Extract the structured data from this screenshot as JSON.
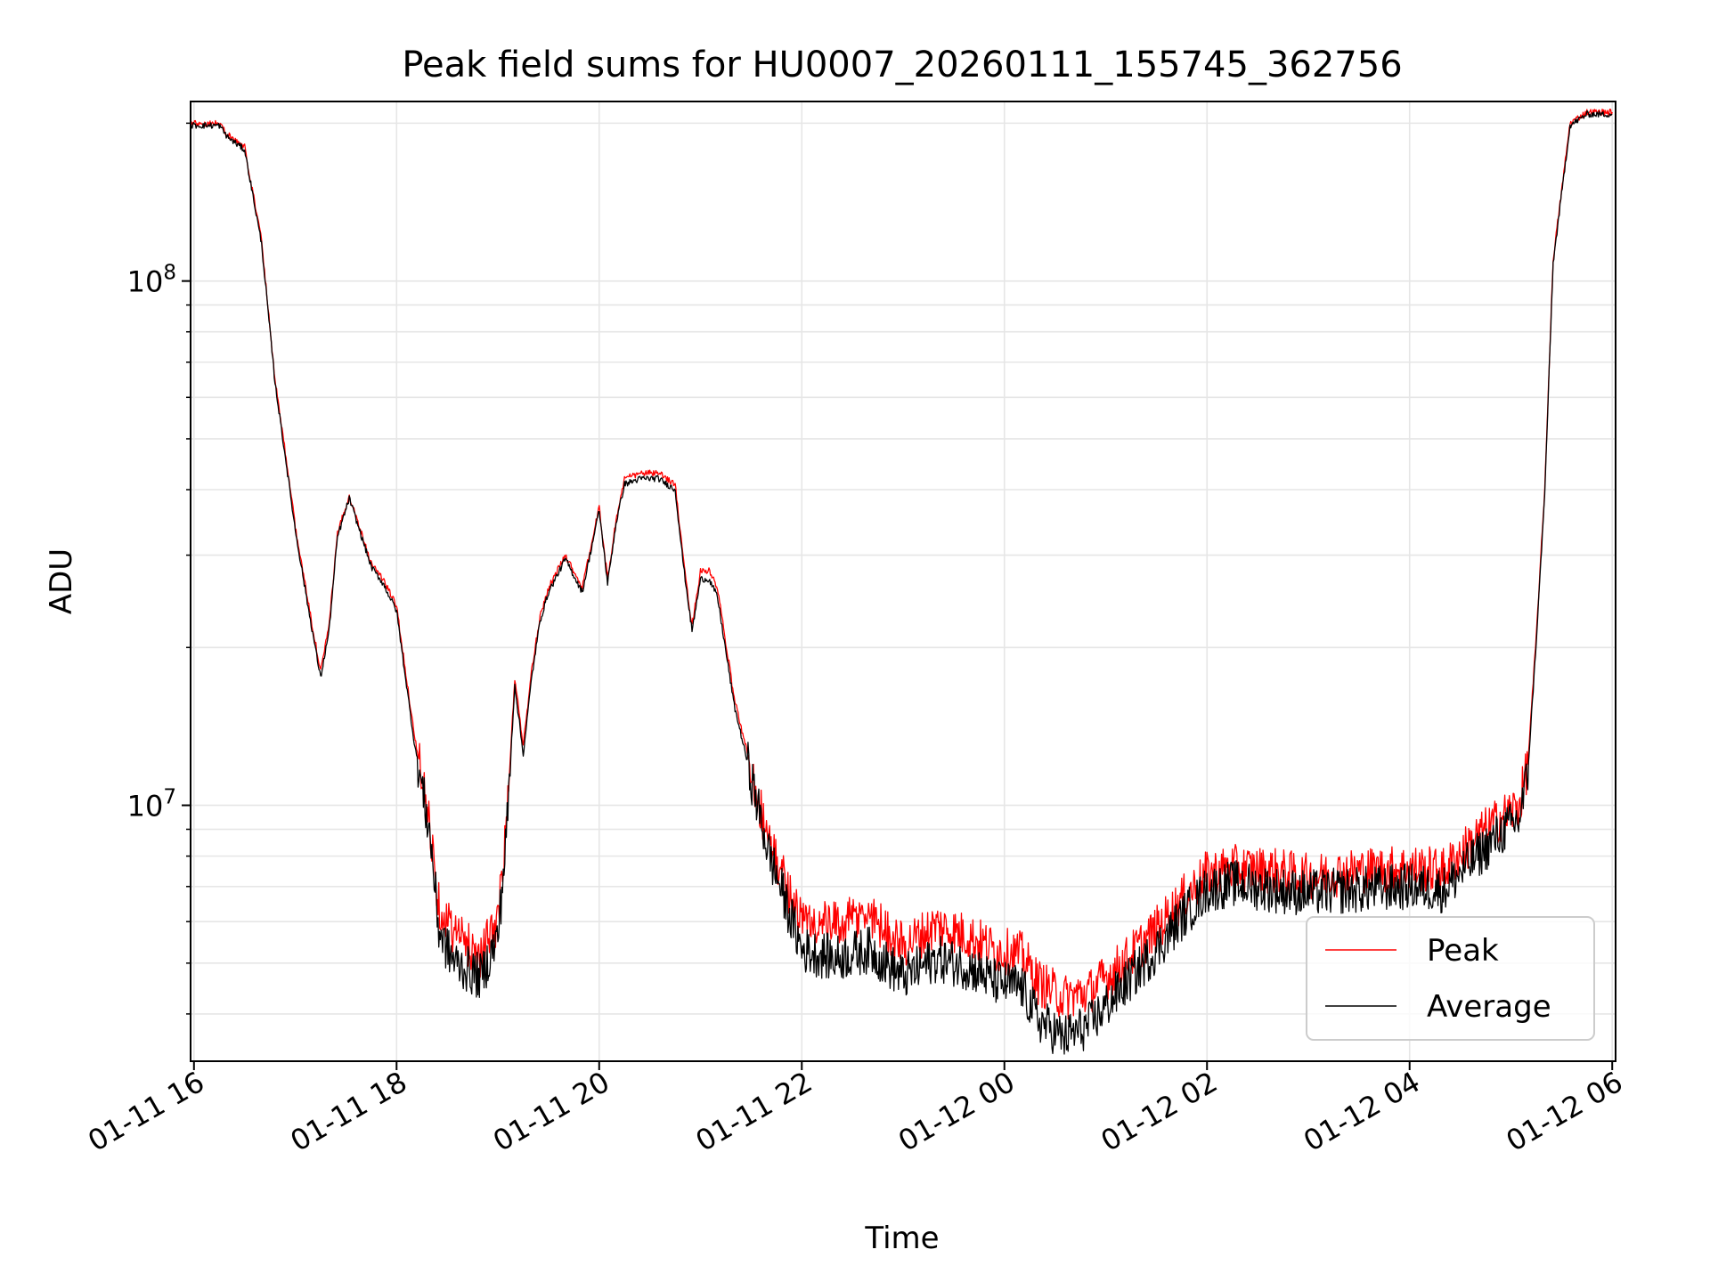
{
  "chart_data": {
    "type": "line",
    "title": "Peak field sums for HU0007_20260111_155745_362756",
    "xlabel": "Time",
    "ylabel": "ADU",
    "yscale": "log",
    "ylim": [
      3250000,
      220000000
    ],
    "xlim": [
      "01-11 15:58",
      "01-12 06:02"
    ],
    "grid": true,
    "legend_position": "lower right",
    "x_ticks": [
      "01-11 16",
      "01-11 18",
      "01-11 20",
      "01-11 22",
      "01-12 00",
      "01-12 02",
      "01-12 04",
      "01-12 06"
    ],
    "y_ticks": [
      {
        "value": 10000000,
        "base": "10",
        "exp": "7"
      },
      {
        "value": 100000000,
        "base": "10",
        "exp": "8"
      }
    ],
    "x": [
      "01-11 15:58",
      "01-11 16:05",
      "01-11 16:15",
      "01-11 16:20",
      "01-11 16:30",
      "01-11 16:40",
      "01-11 16:48",
      "01-11 16:55",
      "01-11 17:00",
      "01-11 17:08",
      "01-11 17:15",
      "01-11 17:20",
      "01-11 17:25",
      "01-11 17:32",
      "01-11 17:38",
      "01-11 17:45",
      "01-11 17:52",
      "01-11 18:00",
      "01-11 18:10",
      "01-11 18:20",
      "01-11 18:25",
      "01-11 18:30",
      "01-11 18:35",
      "01-11 18:40",
      "01-11 18:50",
      "01-11 19:00",
      "01-11 19:05",
      "01-11 19:10",
      "01-11 19:15",
      "01-11 19:20",
      "01-11 19:25",
      "01-11 19:30",
      "01-11 19:40",
      "01-11 19:50",
      "01-11 20:00",
      "01-11 20:05",
      "01-11 20:10",
      "01-11 20:15",
      "01-11 20:25",
      "01-11 20:35",
      "01-11 20:45",
      "01-11 20:50",
      "01-11 20:55",
      "01-11 21:00",
      "01-11 21:05",
      "01-11 21:10",
      "01-11 21:20",
      "01-11 21:40",
      "01-11 22:00",
      "01-11 22:20",
      "01-11 22:40",
      "01-11 23:00",
      "01-11 23:20",
      "01-11 23:40",
      "01-11 23:55",
      "01-12 00:10",
      "01-12 00:20",
      "01-12 00:35",
      "01-12 00:50",
      "01-12 01:10",
      "01-12 01:30",
      "01-12 01:45",
      "01-12 02:00",
      "01-12 02:15",
      "01-12 02:40",
      "01-12 03:00",
      "01-12 03:30",
      "01-12 04:00",
      "01-12 04:20",
      "01-12 04:40",
      "01-12 04:55",
      "01-12 05:05",
      "01-12 05:10",
      "01-12 05:15",
      "01-12 05:20",
      "01-12 05:25",
      "01-12 05:35",
      "01-12 05:45",
      "01-12 05:50",
      "01-12 06:00"
    ],
    "series": [
      {
        "name": "Peak",
        "color": "#ff0000",
        "values": [
          200000000,
          200000000,
          200000000,
          190000000,
          180000000,
          120000000,
          65000000,
          45000000,
          34000000,
          24000000,
          18000000,
          22000000,
          33000000,
          39000000,
          34000000,
          29000000,
          27000000,
          24000000,
          14000000,
          9000000,
          6500000,
          6000000,
          5700000,
          5500000,
          5200000,
          6000000,
          9000000,
          17500000,
          13000000,
          18000000,
          23000000,
          26000000,
          30000000,
          26000000,
          37000000,
          27000000,
          35000000,
          42000000,
          43000000,
          43000000,
          41000000,
          29000000,
          22000000,
          28000000,
          28000000,
          26000000,
          16000000,
          8600000,
          6000000,
          5900000,
          6200000,
          5400000,
          5900000,
          5600000,
          5300000,
          5200000,
          4600000,
          4300000,
          4400000,
          5000000,
          5800000,
          6600000,
          7400000,
          7600000,
          7500000,
          7300000,
          7500000,
          7600000,
          7500000,
          8700000,
          9500000,
          10000000,
          12000000,
          21000000,
          40000000,
          110000000,
          200000000,
          210000000,
          210000000,
          210000000
        ]
      },
      {
        "name": "Average",
        "color": "#000000",
        "values": [
          198000000,
          198000000,
          198000000,
          188000000,
          178000000,
          118000000,
          64000000,
          44000000,
          33500000,
          23500000,
          17500000,
          21500000,
          32500000,
          38500000,
          33500000,
          28500000,
          26500000,
          23500000,
          13500000,
          8700000,
          5800000,
          5300000,
          5000000,
          4900000,
          4700000,
          5600000,
          8700000,
          17000000,
          12500000,
          17500000,
          22500000,
          25500000,
          29500000,
          25500000,
          36500000,
          26500000,
          34500000,
          41000000,
          42000000,
          42000000,
          40000000,
          28500000,
          21500000,
          27000000,
          27000000,
          25000000,
          15500000,
          8200000,
          5300000,
          5100000,
          5300000,
          4700000,
          5100000,
          4900000,
          4600000,
          4500000,
          3900000,
          3600000,
          3800000,
          4500000,
          5300000,
          6100000,
          6900000,
          7100000,
          6900000,
          6800000,
          6900000,
          7000000,
          6900000,
          8000000,
          8900000,
          9400000,
          11500000,
          20500000,
          39000000,
          108000000,
          198000000,
          208000000,
          208000000,
          208000000
        ]
      }
    ]
  }
}
